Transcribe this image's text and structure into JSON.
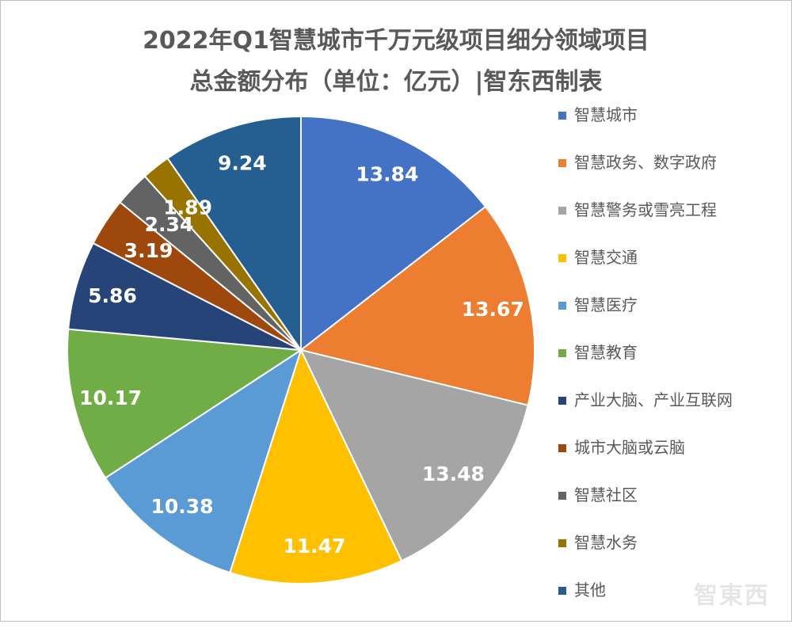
{
  "chart_data": {
    "type": "pie",
    "title": [
      "2022年Q1智慧城市千万元级项目细分领域项目",
      "总金额分布（单位：亿元）|智东西制表"
    ],
    "categories": [
      "智慧城市",
      "智慧政务、数字政府",
      "智慧警务或雪亮工程",
      "智慧交通",
      "智慧医疗",
      "智慧教育",
      "产业大脑、产业互联网",
      "城市大脑或云脑",
      "智慧社区",
      "智慧水务",
      "其他"
    ],
    "values": [
      13.84,
      13.67,
      13.48,
      11.47,
      10.38,
      10.17,
      5.86,
      3.19,
      2.34,
      1.89,
      9.24
    ],
    "labels": [
      "13.84",
      "13.67",
      "13.48",
      "11.47",
      "10.38",
      "10.17",
      "5.86",
      "3.19",
      "2.34",
      "1.89",
      "9.24"
    ],
    "colors": [
      "#4472C4",
      "#ED7D31",
      "#A5A5A5",
      "#FFC000",
      "#5B9BD5",
      "#70AD47",
      "#264478",
      "#9E480E",
      "#636363",
      "#997300",
      "#255E91"
    ],
    "start": "top",
    "direction": "clockwise",
    "legend_position": "right"
  },
  "watermark": "智东西"
}
